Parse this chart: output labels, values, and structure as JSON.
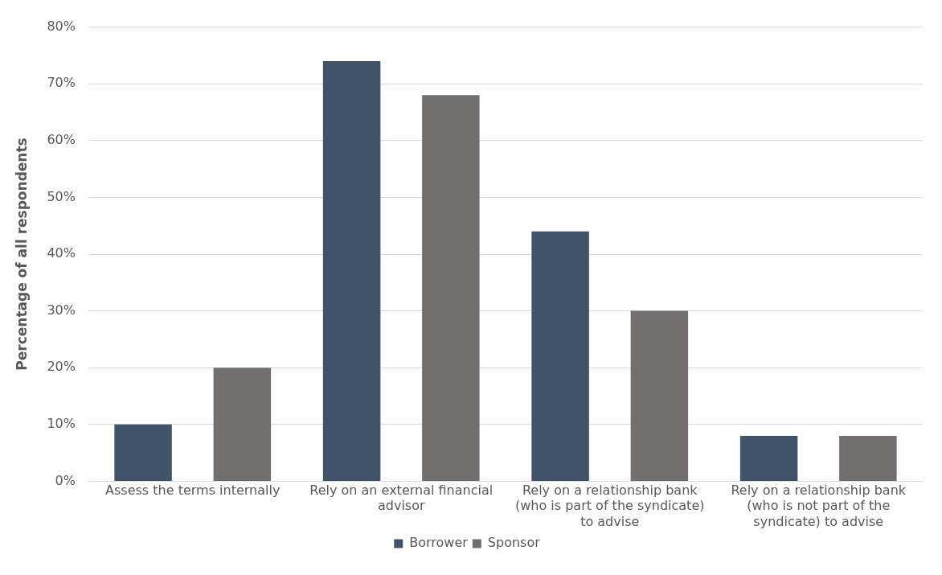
{
  "chart_data": {
    "type": "bar",
    "ylabel": "Percentage of all respondents",
    "categories": [
      "Assess the terms internally",
      "Rely on an external financial advisor",
      "Rely on a relationship bank (who is part of the syndicate) to advise",
      "Rely on a relationship bank (who is not part of the syndicate) to advise"
    ],
    "series": [
      {
        "name": "Borrower",
        "color": "#425369",
        "values": [
          10,
          74,
          44,
          8
        ]
      },
      {
        "name": "Sponsor",
        "color": "#736f6e",
        "values": [
          20,
          68,
          30,
          8
        ]
      }
    ],
    "ylim": [
      0,
      80
    ],
    "yticks": [
      {
        "value": 0,
        "label": "0%"
      },
      {
        "value": 10,
        "label": "10%"
      },
      {
        "value": 20,
        "label": "20%"
      },
      {
        "value": 30,
        "label": "30%"
      },
      {
        "value": 40,
        "label": "40%"
      },
      {
        "value": 50,
        "label": "50%"
      },
      {
        "value": 60,
        "label": "60%"
      },
      {
        "value": 70,
        "label": "70%"
      },
      {
        "value": 80,
        "label": "80%"
      }
    ],
    "grid": "y",
    "legend": "bottom"
  }
}
